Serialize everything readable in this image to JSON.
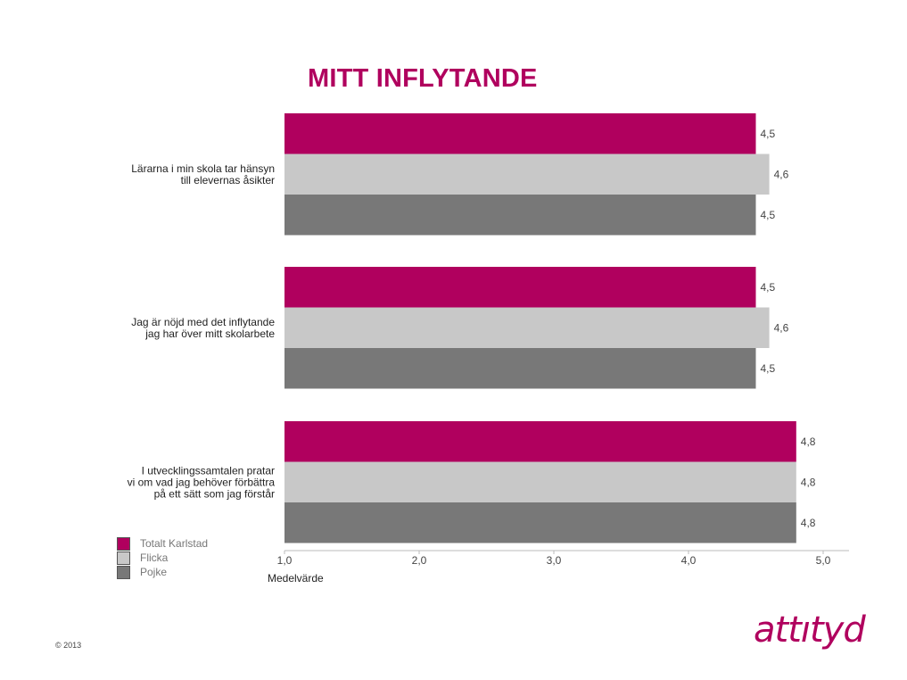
{
  "chart_data": {
    "type": "bar",
    "orientation": "horizontal",
    "title": "MITT INFLYTANDE",
    "xlabel": "Medelvärde",
    "xlim": [
      1.0,
      5.0
    ],
    "xticks": [
      "1,0",
      "2,0",
      "3,0",
      "4,0",
      "5,0"
    ],
    "categories": [
      [
        "Lärarna i min skola tar hänsyn",
        "till elevernas åsikter"
      ],
      [
        "Jag är nöjd med det inflytande",
        "jag har över mitt skolarbete"
      ],
      [
        "I utvecklingssamtalen pratar",
        "vi om vad jag behöver förbättra",
        "på ett sätt som jag förstår"
      ]
    ],
    "series": [
      {
        "name": "Totalt Karlstad",
        "color": "#b0005e",
        "values": [
          4.5,
          4.5,
          4.8
        ],
        "labels": [
          "4,5",
          "4,5",
          "4,8"
        ]
      },
      {
        "name": "Flicka",
        "color": "#c8c8c8",
        "values": [
          4.6,
          4.6,
          4.8
        ],
        "labels": [
          "4,6",
          "4,6",
          "4,8"
        ]
      },
      {
        "name": "Pojke",
        "color": "#787878",
        "values": [
          4.5,
          4.5,
          4.8
        ],
        "labels": [
          "4,5",
          "4,5",
          "4,8"
        ]
      }
    ],
    "legend_position": "bottom-left",
    "grid": false
  },
  "footer": {
    "copyright": "© 2013",
    "logo": "attıtyd"
  }
}
